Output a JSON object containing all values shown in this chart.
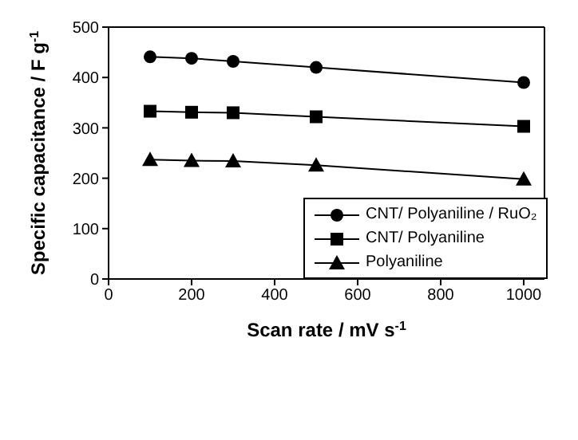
{
  "chart_data": {
    "type": "line",
    "xlabel": "Scan rate / mV s$^{-1}$",
    "ylabel": "Specific capacitance / F g$^{-1}$",
    "x": [
      100,
      200,
      300,
      500,
      1000
    ],
    "series": [
      {
        "name": "CNT/ Polyaniline / RuO₂",
        "color": "#000000",
        "marker": "circle",
        "values": [
          441,
          438,
          432,
          420,
          390
        ]
      },
      {
        "name": "CNT/ Polyaniline",
        "color": "#000000",
        "marker": "square",
        "values": [
          333,
          331,
          330,
          322,
          303
        ]
      },
      {
        "name": "Polyaniline",
        "color": "#000000",
        "marker": "triangle",
        "values": [
          237,
          235,
          234,
          226,
          198
        ]
      }
    ],
    "xlim": [
      0,
      1050
    ],
    "xticks": [
      0,
      200,
      400,
      600,
      800,
      1000
    ],
    "ylim": [
      0,
      500
    ],
    "yticks": [
      0,
      100,
      200,
      300,
      400,
      500
    ],
    "legend": "bottom right",
    "grid": false
  }
}
